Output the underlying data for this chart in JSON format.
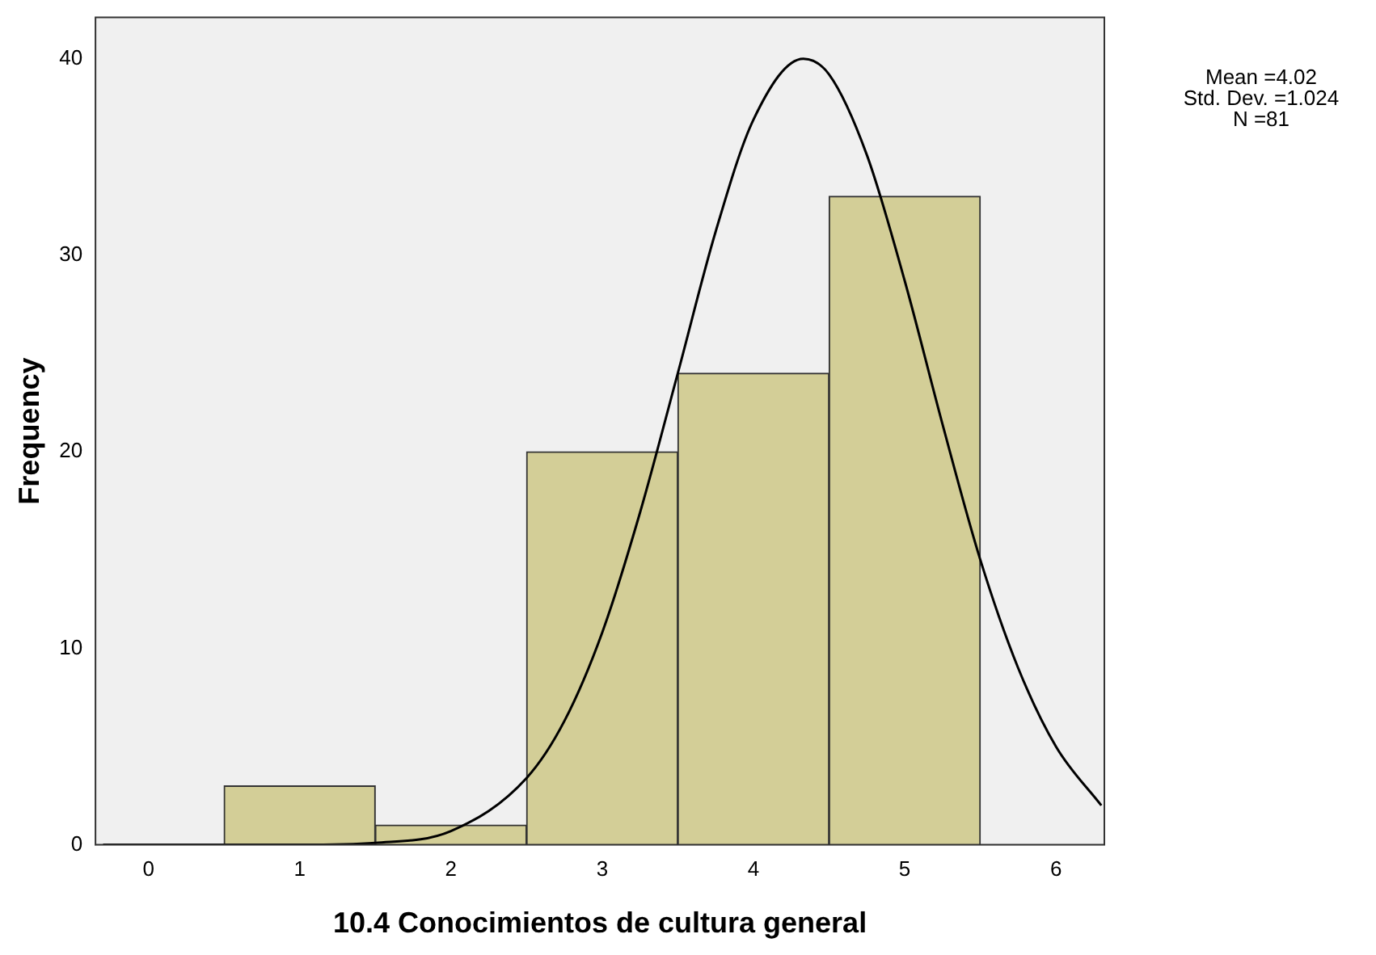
{
  "chart_data": {
    "type": "histogram",
    "xlabel": "10.4 Conocimientos de cultura general",
    "ylabel": "Frequency",
    "bins": [
      0.5,
      1.5,
      2.5,
      3.5,
      4.5,
      5.5
    ],
    "values": [
      3,
      1,
      20,
      24,
      33
    ],
    "color": "#d3ce97",
    "series": [
      {
        "type": "line",
        "color": "#000000",
        "x": [
          -0.3,
          1,
          1.5,
          2,
          2.5,
          2.75,
          3,
          3.25,
          3.5,
          3.75,
          4,
          4.33,
          4.5,
          4.75,
          5,
          5.25,
          5.5,
          5.75,
          6,
          6.3
        ],
        "values": [
          0,
          0,
          0.1,
          0.7,
          3.4,
          6.3,
          10.8,
          16.9,
          24,
          31.2,
          36.9,
          40,
          39.2,
          35.1,
          28.7,
          21.4,
          14.5,
          9,
          5,
          2
        ]
      }
    ],
    "xlim": [
      -0.35,
      6.32
    ],
    "xticks": [
      0,
      1,
      2,
      3,
      4,
      5,
      6
    ],
    "ylim": [
      0,
      42.1
    ],
    "yticks": [
      0,
      10,
      20,
      30,
      40
    ],
    "grid": false,
    "legend": false,
    "annotations": [
      "Mean =4.02",
      "Std. Dev. =1.024",
      "N =81"
    ]
  }
}
